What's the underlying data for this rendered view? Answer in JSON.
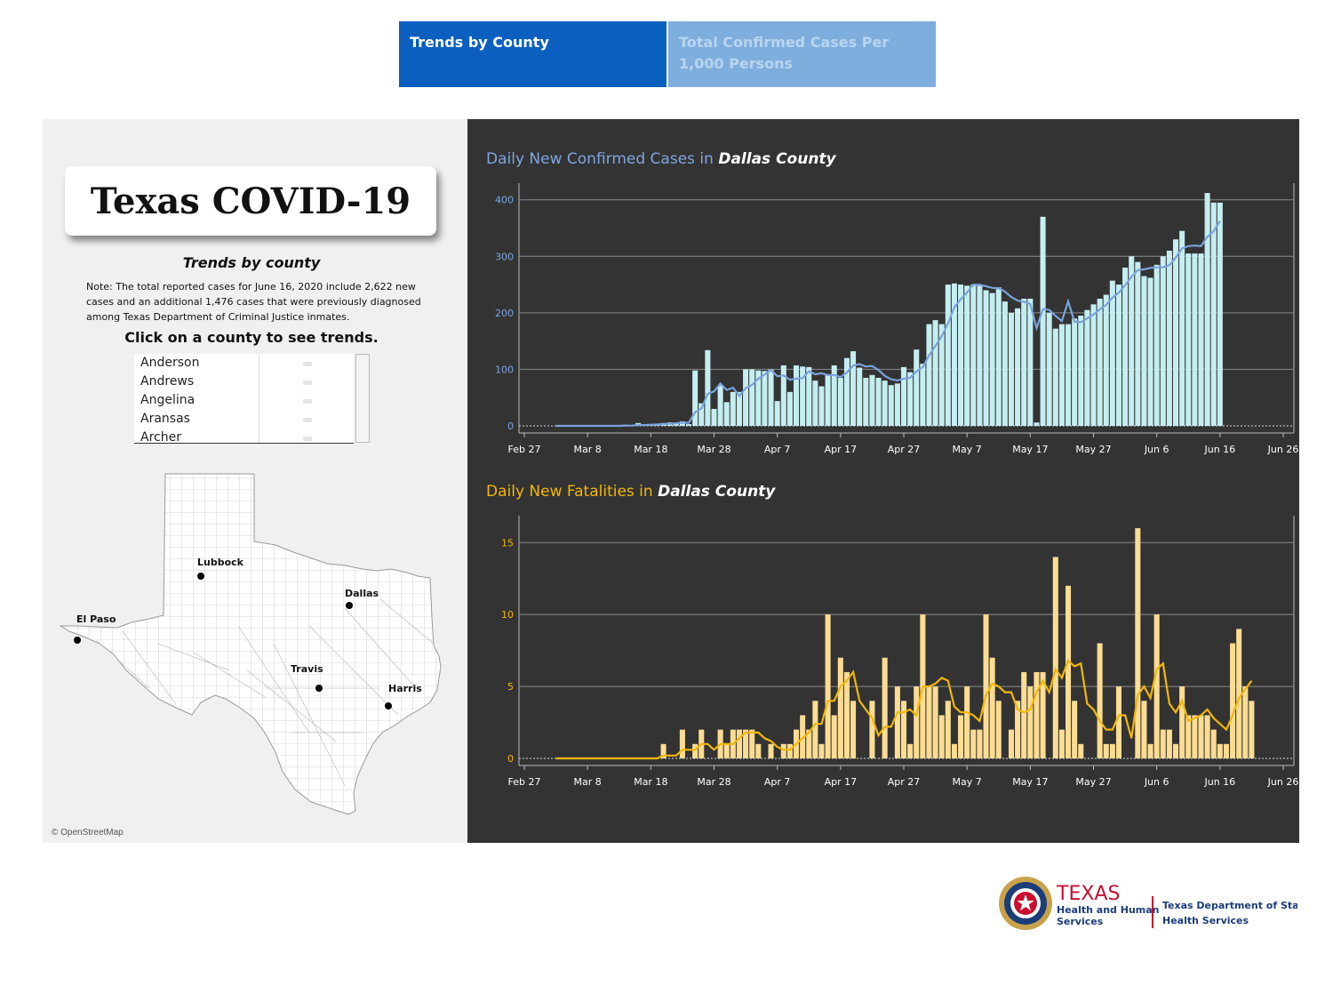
{
  "tabs": [
    {
      "label": "Trends by County",
      "active": true
    },
    {
      "label": "Total Confirmed Cases Per 1,000 Persons",
      "active": false
    }
  ],
  "left": {
    "title": "Texas COVID-19",
    "subtitle": "Trends by county",
    "note": "Note: The total reported cases for June 16, 2020 include 2,622 new cases and an additional 1,476 cases that were previously diagnosed among Texas Department of Criminal Justice inmates.",
    "click_label": "Click on a county to see trends.",
    "counties": [
      "Anderson",
      "Andrews",
      "Angelina",
      "Aransas",
      "Archer"
    ],
    "map_labels": [
      "Lubbock",
      "Dallas",
      "El Paso",
      "Travis",
      "Harris"
    ],
    "attribution": "© OpenStreetMap"
  },
  "charts": {
    "cases_title_prefix": "Daily New Confirmed Cases in ",
    "fatal_title_prefix": "Daily New Fatalities in ",
    "county": "Dallas County"
  },
  "logo": {
    "texas": "TEXAS",
    "hhs_line1": "Health and Human",
    "hhs_line2": "Services",
    "dshs_line1": "Texas Department of State",
    "dshs_line2": "Health Services"
  },
  "colors": {
    "tab_active": "#0a5fbf",
    "tab_inactive": "#7eaedd",
    "panel_dark": "#333333",
    "case_bar": "#c5eef1",
    "case_line": "#7aa3dc",
    "fatal_bar": "#fddc93",
    "fatal_line": "#f2b705"
  },
  "chart_data": [
    {
      "type": "bar",
      "title": "Daily New Confirmed Cases in Dallas County",
      "x_ticks": [
        "Feb 27",
        "Mar 8",
        "Mar 18",
        "Mar 28",
        "Apr 7",
        "Apr 17",
        "Apr 27",
        "May 7",
        "May 17",
        "May 27",
        "Jun 6",
        "Jun 16",
        "Jun 26"
      ],
      "start_date": "2020-03-03",
      "ylim": [
        0,
        420
      ],
      "y_ticks": [
        0,
        100,
        200,
        300,
        400
      ],
      "series": [
        {
          "values": [
            0,
            0,
            0,
            0,
            0,
            0,
            0,
            0,
            0,
            0,
            0,
            2,
            0,
            5,
            0,
            3,
            4,
            5,
            6,
            5,
            8,
            3,
            98,
            40,
            134,
            30,
            72,
            42,
            60,
            60,
            100,
            100,
            98,
            97,
            100,
            44,
            107,
            60,
            107,
            105,
            104,
            80,
            70,
            90,
            107,
            85,
            120,
            132,
            103,
            85,
            90,
            85,
            80,
            72,
            75,
            104,
            95,
            135,
            110,
            180,
            187,
            180,
            250,
            252,
            250,
            248,
            250,
            248,
            240,
            235,
            245,
            220,
            200,
            208,
            225,
            225,
            6,
            370,
            200,
            172,
            180,
            180,
            190,
            195,
            205,
            215,
            225,
            232,
            257,
            250,
            280,
            300,
            290,
            265,
            262,
            285,
            300,
            310,
            330,
            345,
            305,
            305,
            305,
            412,
            395,
            395
          ]
        }
      ]
    },
    {
      "type": "bar",
      "title": "Daily New Fatalities in Dallas County",
      "x_ticks": [
        "Feb 27",
        "Mar 8",
        "Mar 18",
        "Mar 28",
        "Apr 7",
        "Apr 17",
        "Apr 27",
        "May 7",
        "May 17",
        "May 27",
        "Jun 6",
        "Jun 16",
        "Jun 26"
      ],
      "start_date": "2020-03-03",
      "ylim": [
        0,
        16.5
      ],
      "y_ticks": [
        0,
        5,
        10,
        15
      ],
      "series": [
        {
          "values": [
            0,
            0,
            0,
            0,
            0,
            0,
            0,
            0,
            0,
            0,
            0,
            0,
            0,
            0,
            0,
            0,
            0,
            1,
            0,
            0,
            2,
            0,
            1,
            2,
            0,
            0,
            2,
            1,
            2,
            2,
            2,
            2,
            1,
            0,
            1,
            0,
            1,
            1,
            2,
            3,
            2,
            4,
            1,
            10,
            3,
            7,
            6,
            4,
            0,
            0,
            4,
            0,
            7,
            0,
            5,
            4,
            1,
            5,
            10,
            5,
            5,
            3,
            4,
            1,
            3,
            5,
            2,
            2,
            10,
            7,
            4,
            0,
            2,
            4,
            6,
            5,
            6,
            6,
            0,
            14,
            2,
            12,
            4,
            1,
            0,
            0,
            8,
            1,
            1,
            5,
            0,
            0,
            16,
            4,
            1,
            10,
            2,
            2,
            1,
            5,
            3,
            3,
            3,
            3,
            2,
            1,
            1,
            8,
            9,
            5,
            4
          ]
        }
      ]
    }
  ]
}
